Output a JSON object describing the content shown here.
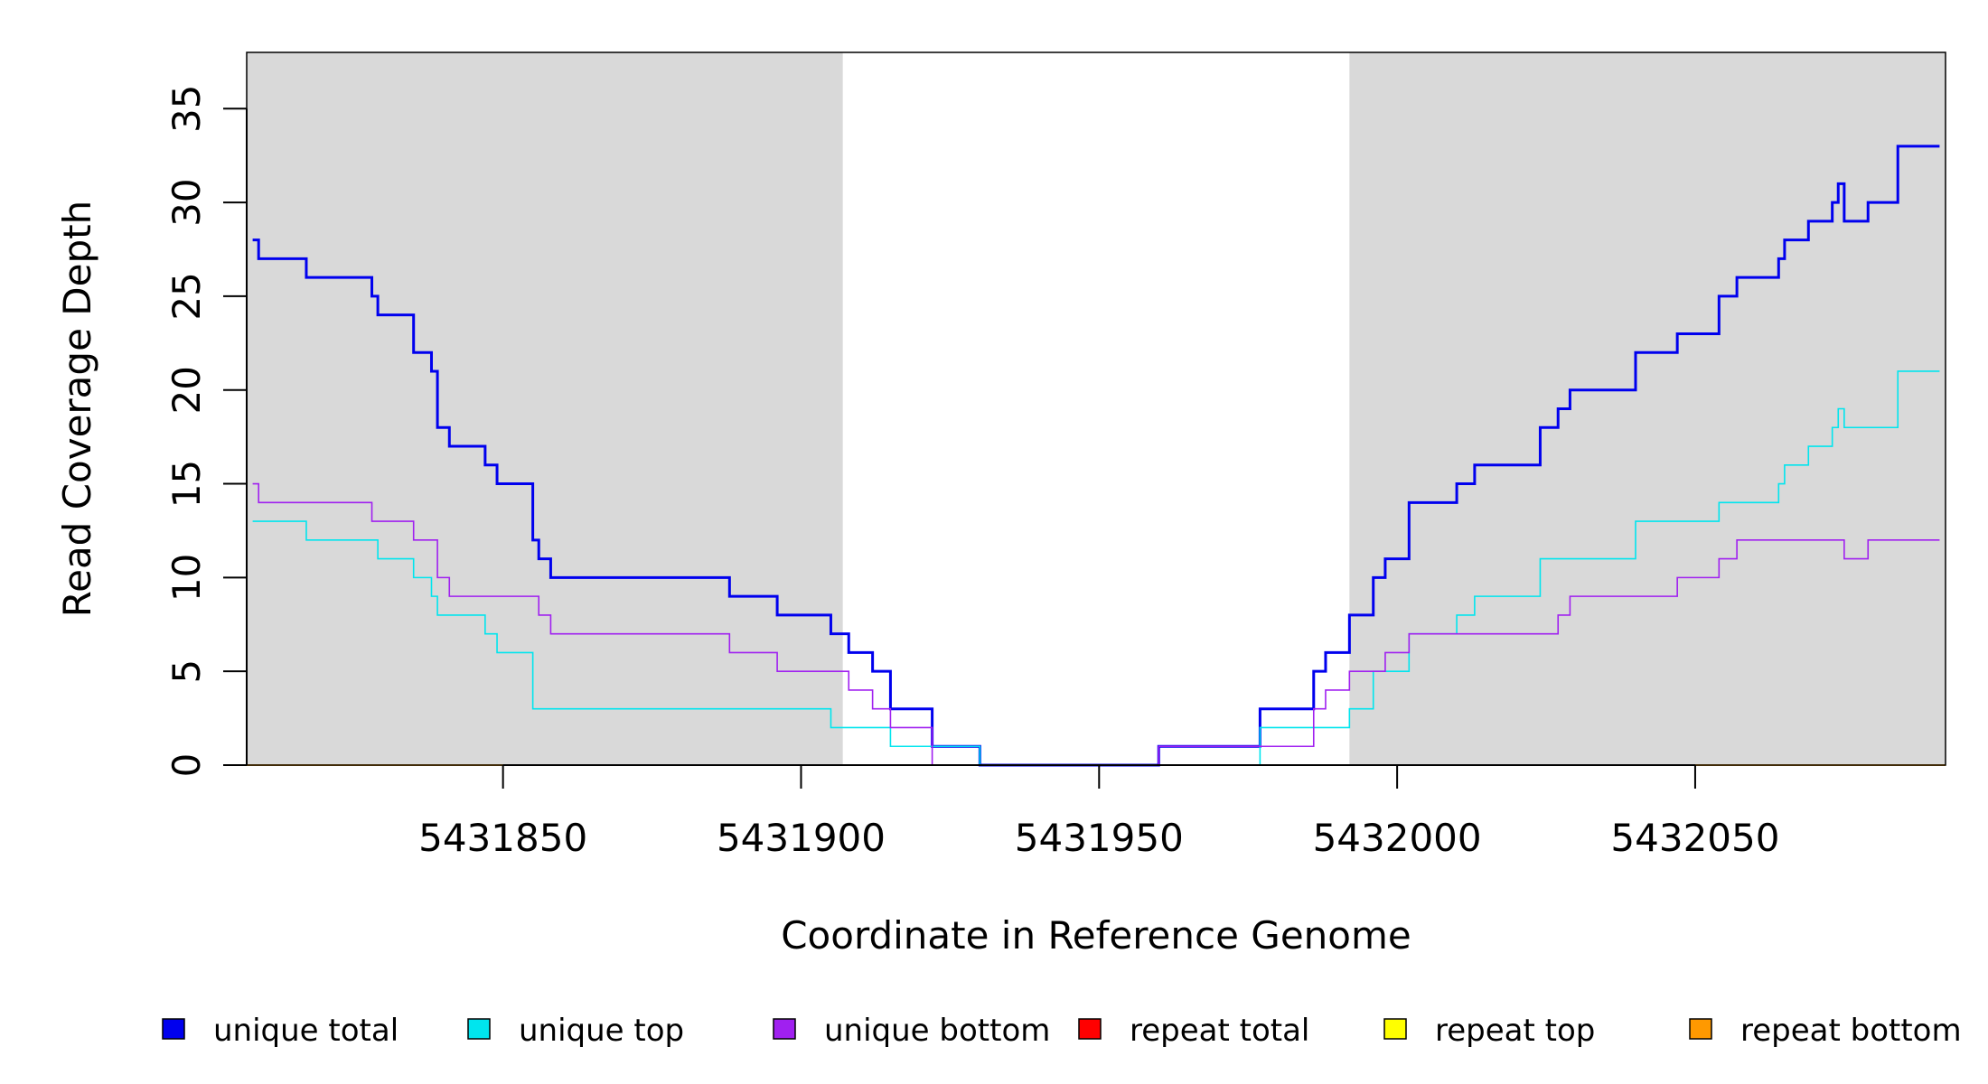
{
  "chart_data": {
    "type": "line",
    "xlabel": "Coordinate in Reference Genome",
    "ylabel": "Read Coverage Depth",
    "xlim": [
      5431807,
      5432092
    ],
    "ylim": [
      0,
      38
    ],
    "x_ticks": [
      5431850,
      5431900,
      5431950,
      5432000,
      5432050
    ],
    "x_tick_labels": [
      "5431850",
      "5431900",
      "5431950",
      "5432000",
      "5432050"
    ],
    "y_ticks": [
      0,
      5,
      10,
      15,
      20,
      25,
      30,
      35
    ],
    "y_tick_labels": [
      "0",
      "5",
      "10",
      "15",
      "20",
      "25",
      "30",
      "35"
    ],
    "shaded_regions": [
      [
        5431807,
        5431907
      ],
      [
        5431992,
        5432092
      ]
    ],
    "shade_color": "#d9d9d9",
    "grid": false,
    "legend_position": "bottom",
    "series": [
      {
        "name": "unique total",
        "color": "#0000ee",
        "stroke_weight": "thick",
        "steps": [
          [
            5431808,
            28
          ],
          [
            5431809,
            27
          ],
          [
            5431817,
            26
          ],
          [
            5431828,
            25
          ],
          [
            5431829,
            24
          ],
          [
            5431835,
            22
          ],
          [
            5431838,
            21
          ],
          [
            5431839,
            18
          ],
          [
            5431841,
            17
          ],
          [
            5431847,
            16
          ],
          [
            5431849,
            15
          ],
          [
            5431855,
            12
          ],
          [
            5431856,
            11
          ],
          [
            5431858,
            10
          ],
          [
            5431888,
            9
          ],
          [
            5431896,
            8
          ],
          [
            5431905,
            7
          ],
          [
            5431908,
            6
          ],
          [
            5431912,
            5
          ],
          [
            5431915,
            3
          ],
          [
            5431922,
            1
          ],
          [
            5431930,
            0
          ],
          [
            5431960,
            1
          ],
          [
            5431977,
            3
          ],
          [
            5431986,
            5
          ],
          [
            5431988,
            6
          ],
          [
            5431992,
            8
          ],
          [
            5431996,
            10
          ],
          [
            5431998,
            11
          ],
          [
            5432002,
            14
          ],
          [
            5432010,
            15
          ],
          [
            5432013,
            16
          ],
          [
            5432024,
            18
          ],
          [
            5432027,
            19
          ],
          [
            5432029,
            20
          ],
          [
            5432040,
            22
          ],
          [
            5432047,
            23
          ],
          [
            5432054,
            25
          ],
          [
            5432057,
            26
          ],
          [
            5432064,
            27
          ],
          [
            5432065,
            28
          ],
          [
            5432069,
            29
          ],
          [
            5432073,
            30
          ],
          [
            5432074,
            31
          ],
          [
            5432075,
            29
          ],
          [
            5432079,
            30
          ],
          [
            5432084,
            33
          ],
          [
            5432091,
            33
          ]
        ]
      },
      {
        "name": "unique top",
        "color": "#00e5ee",
        "stroke_weight": "thin",
        "steps": [
          [
            5431808,
            13
          ],
          [
            5431817,
            12
          ],
          [
            5431829,
            11
          ],
          [
            5431835,
            10
          ],
          [
            5431838,
            9
          ],
          [
            5431839,
            8
          ],
          [
            5431847,
            7
          ],
          [
            5431849,
            6
          ],
          [
            5431855,
            3
          ],
          [
            5431905,
            2
          ],
          [
            5431915,
            1
          ],
          [
            5431930,
            0
          ],
          [
            5431977,
            2
          ],
          [
            5431992,
            3
          ],
          [
            5431996,
            5
          ],
          [
            5432002,
            7
          ],
          [
            5432010,
            8
          ],
          [
            5432013,
            9
          ],
          [
            5432024,
            11
          ],
          [
            5432040,
            13
          ],
          [
            5432054,
            14
          ],
          [
            5432064,
            15
          ],
          [
            5432065,
            16
          ],
          [
            5432069,
            17
          ],
          [
            5432073,
            18
          ],
          [
            5432074,
            19
          ],
          [
            5432075,
            18
          ],
          [
            5432084,
            21
          ],
          [
            5432091,
            21
          ]
        ]
      },
      {
        "name": "unique bottom",
        "color": "#a020f0",
        "stroke_weight": "thin",
        "steps": [
          [
            5431808,
            15
          ],
          [
            5431809,
            14
          ],
          [
            5431828,
            13
          ],
          [
            5431835,
            12
          ],
          [
            5431839,
            10
          ],
          [
            5431841,
            9
          ],
          [
            5431856,
            8
          ],
          [
            5431858,
            7
          ],
          [
            5431888,
            6
          ],
          [
            5431896,
            5
          ],
          [
            5431908,
            4
          ],
          [
            5431912,
            3
          ],
          [
            5431915,
            2
          ],
          [
            5431922,
            0
          ],
          [
            5431960,
            1
          ],
          [
            5431986,
            3
          ],
          [
            5431988,
            4
          ],
          [
            5431992,
            5
          ],
          [
            5431998,
            6
          ],
          [
            5432002,
            7
          ],
          [
            5432027,
            8
          ],
          [
            5432029,
            9
          ],
          [
            5432047,
            10
          ],
          [
            5432054,
            11
          ],
          [
            5432057,
            12
          ],
          [
            5432075,
            11
          ],
          [
            5432079,
            12
          ],
          [
            5432091,
            12
          ]
        ]
      },
      {
        "name": "repeat total",
        "color": "#ff0000",
        "stroke_weight": "thin",
        "steps": [
          [
            5431807,
            0
          ],
          [
            5432092,
            0
          ]
        ]
      },
      {
        "name": "repeat top",
        "color": "#ffff00",
        "stroke_weight": "thin",
        "steps": [
          [
            5431807,
            0
          ],
          [
            5432092,
            0
          ]
        ]
      },
      {
        "name": "repeat bottom",
        "color": "#ff9900",
        "stroke_weight": "thin",
        "steps": [
          [
            5431807,
            0
          ],
          [
            5432092,
            0
          ]
        ]
      }
    ]
  }
}
